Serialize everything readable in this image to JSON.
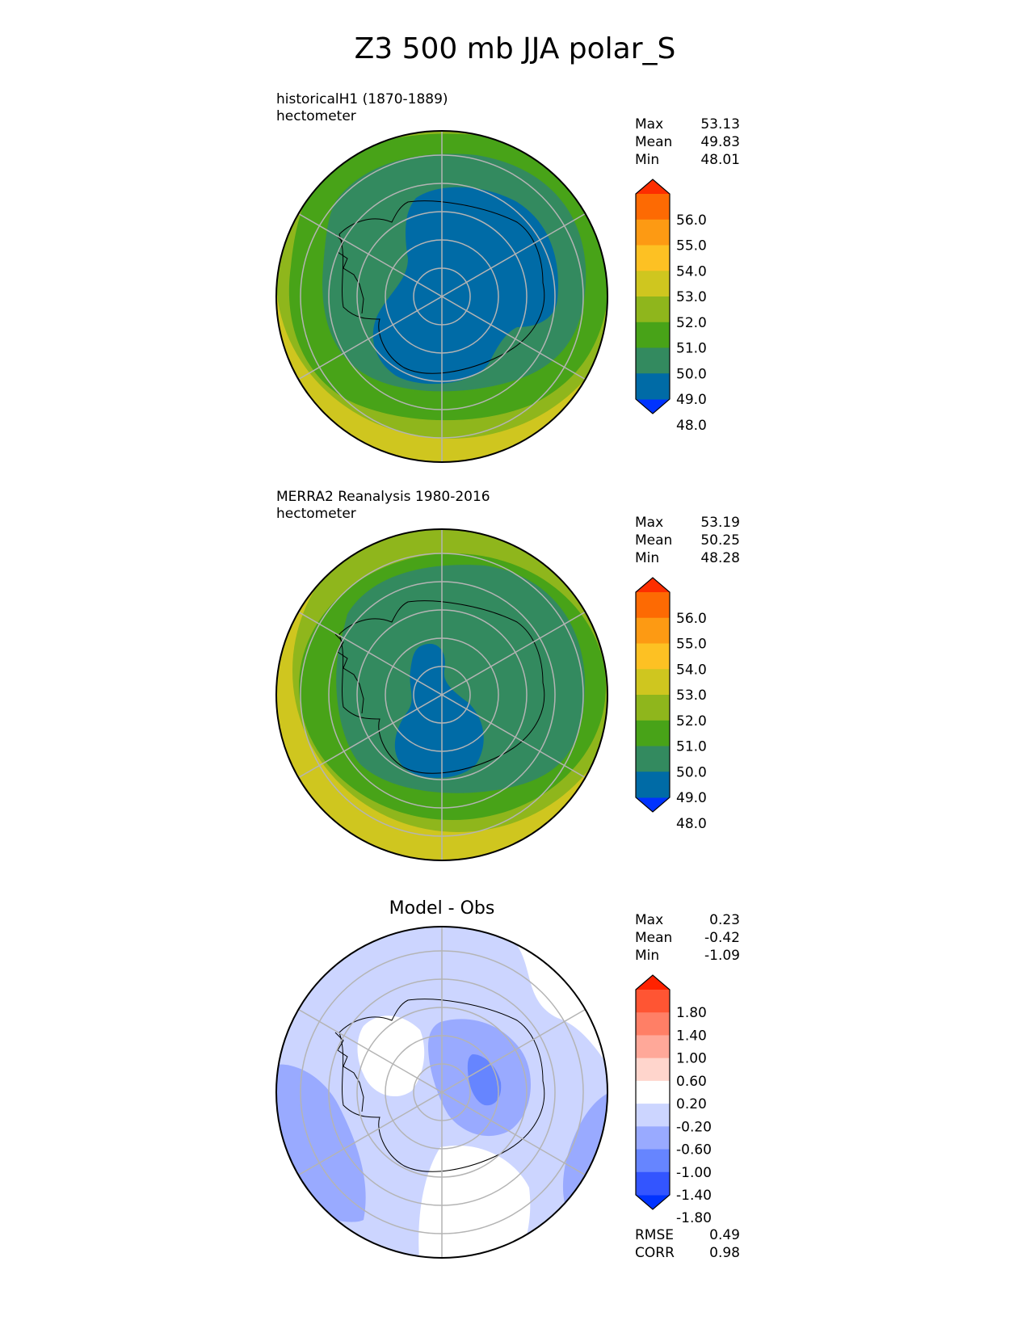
{
  "figure": {
    "title": "Z3 500 mb JJA polar_S"
  },
  "panels": [
    {
      "id": "test",
      "subtitle_line1": "historicalH1 (1870-1889)",
      "subtitle_line2": "hectometer",
      "stats": [
        {
          "label": "Max",
          "value": "53.13"
        },
        {
          "label": "Mean",
          "value": "49.83"
        },
        {
          "label": "Min",
          "value": "48.01"
        }
      ]
    },
    {
      "id": "reference",
      "subtitle_line1": "MERRA2 Reanalysis 1980-2016",
      "subtitle_line2": "hectometer",
      "stats": [
        {
          "label": "Max",
          "value": "53.19"
        },
        {
          "label": "Mean",
          "value": "50.25"
        },
        {
          "label": "Min",
          "value": "48.28"
        }
      ]
    },
    {
      "id": "difference",
      "title": "Model - Obs",
      "stats": [
        {
          "label": "Max",
          "value": "0.23"
        },
        {
          "label": "Mean",
          "value": "-0.42"
        },
        {
          "label": "Min",
          "value": "-1.09"
        }
      ],
      "extra_stats": [
        {
          "label": "RMSE",
          "value": "0.49"
        },
        {
          "label": "CORR",
          "value": "0.98"
        }
      ]
    }
  ],
  "chart_data": [
    {
      "type": "heatmap",
      "projection": "south-polar-stereographic",
      "title": "historicalH1 (1870-1889)",
      "units": "hectometer",
      "colorbar": {
        "extend": "both",
        "levels": [
          48.0,
          49.0,
          50.0,
          51.0,
          52.0,
          53.0,
          54.0,
          55.0,
          56.0
        ],
        "tick_labels": [
          "56.0",
          "55.0",
          "54.0",
          "53.0",
          "52.0",
          "51.0",
          "50.0",
          "49.0",
          "48.0"
        ],
        "colors": [
          "#0033ff",
          "#006ba6",
          "#338a5f",
          "#48a318",
          "#8fb61c",
          "#cfc61f",
          "#fdc123",
          "#fd9a13",
          "#fd6a03",
          "#fd2e00"
        ]
      },
      "contours": [
        {
          "level": "48-49",
          "color": "#006ba6"
        },
        {
          "level": "49-50",
          "color": "#338a5f"
        },
        {
          "level": "50-51",
          "color": "#48a318"
        },
        {
          "level": "51-52",
          "color": "#8fb61c"
        },
        {
          "level": "52-53",
          "color": "#cfc61f"
        }
      ]
    },
    {
      "type": "heatmap",
      "projection": "south-polar-stereographic",
      "title": "MERRA2 Reanalysis 1980-2016",
      "units": "hectometer",
      "colorbar": {
        "extend": "both",
        "levels": [
          48.0,
          49.0,
          50.0,
          51.0,
          52.0,
          53.0,
          54.0,
          55.0,
          56.0
        ],
        "tick_labels": [
          "56.0",
          "55.0",
          "54.0",
          "53.0",
          "52.0",
          "51.0",
          "50.0",
          "49.0",
          "48.0"
        ],
        "colors": [
          "#0033ff",
          "#006ba6",
          "#338a5f",
          "#48a318",
          "#8fb61c",
          "#cfc61f",
          "#fdc123",
          "#fd9a13",
          "#fd6a03",
          "#fd2e00"
        ]
      }
    },
    {
      "type": "heatmap",
      "projection": "south-polar-stereographic",
      "title": "Model - Obs",
      "colorbar": {
        "extend": "both",
        "levels": [
          -1.8,
          -1.4,
          -1.0,
          -0.6,
          -0.2,
          0.2,
          0.6,
          1.0,
          1.4,
          1.8
        ],
        "tick_labels": [
          "1.80",
          "1.40",
          "1.00",
          "0.60",
          "0.20",
          "-0.20",
          "-0.60",
          "-1.00",
          "-1.40",
          "-1.80"
        ],
        "colors": [
          "#0033ff",
          "#3355ff",
          "#6685ff",
          "#99aaff",
          "#ccd5ff",
          "#ffffff",
          "#ffd5cc",
          "#ffa899",
          "#ff7f66",
          "#ff5533",
          "#ff2200"
        ]
      }
    }
  ]
}
